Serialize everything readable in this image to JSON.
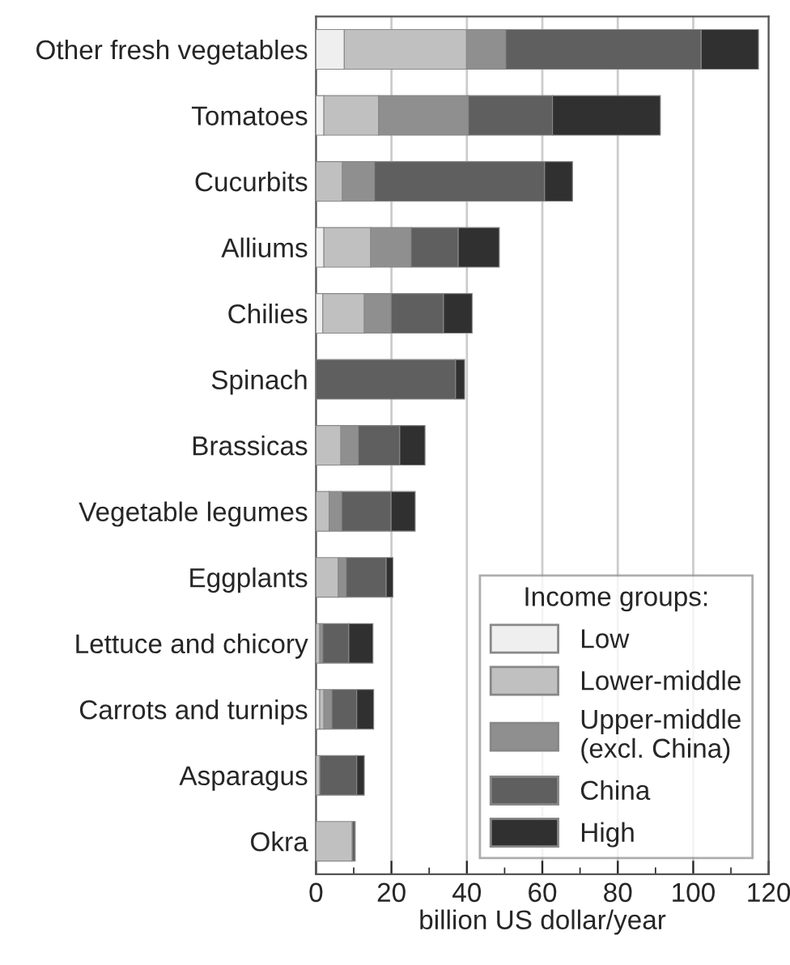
{
  "chart_data": {
    "type": "bar",
    "orientation": "horizontal",
    "stacked": true,
    "categories": [
      "Other fresh vegetables",
      "Tomatoes",
      "Cucurbits",
      "Alliums",
      "Chilies",
      "Spinach",
      "Brassicas",
      "Vegetable legumes",
      "Eggplants",
      "Lettuce and chicory",
      "Carrots and turnips",
      "Asparagus",
      "Okra"
    ],
    "series": [
      {
        "name": "Low",
        "color": "#efefef",
        "values": [
          7.5,
          2.1,
          0,
          2.1,
          1.8,
          0,
          null,
          null,
          0,
          null,
          1.0,
          0,
          0
        ]
      },
      {
        "name": "Lower-middle",
        "color": "#c0c0c0",
        "values": [
          32.4,
          14.5,
          7.0,
          12.4,
          11.0,
          0,
          6.6,
          3.5,
          5.9,
          1.0,
          1.1,
          1.0,
          9.6
        ]
      },
      {
        "name": "Upper-middle\n(excl. China)",
        "color": "#8f8f8f",
        "values": [
          10.4,
          23.8,
          8.5,
          10.7,
          7.1,
          0,
          4.6,
          3.3,
          2.1,
          0.8,
          2.1,
          0,
          0
        ]
      },
      {
        "name": "China",
        "color": "#5f5f5f",
        "values": [
          51.8,
          22.3,
          45.1,
          12.5,
          13.9,
          37.0,
          11.0,
          13.1,
          10.6,
          6.9,
          6.6,
          9.8,
          0.8
        ]
      },
      {
        "name": "High",
        "color": "#303030",
        "values": [
          15.2,
          28.6,
          7.4,
          10.9,
          7.6,
          2.4,
          6.7,
          6.4,
          1.8,
          6.4,
          4.5,
          2.0,
          0
        ]
      }
    ],
    "xlabel": "billion US dollar/year",
    "legend_title": "Income groups:",
    "legend": "bottom right",
    "xlim": [
      0,
      120
    ],
    "xticks": [
      0,
      {
        "value": 10,
        "label": null
      },
      20,
      {
        "value": 30,
        "label": null
      },
      40,
      {
        "value": 50,
        "label": null
      },
      60,
      {
        "value": 70,
        "label": null
      },
      80,
      {
        "value": 90,
        "label": null
      },
      100,
      {
        "value": 110,
        "label": null
      },
      120
    ],
    "grid": "x"
  }
}
